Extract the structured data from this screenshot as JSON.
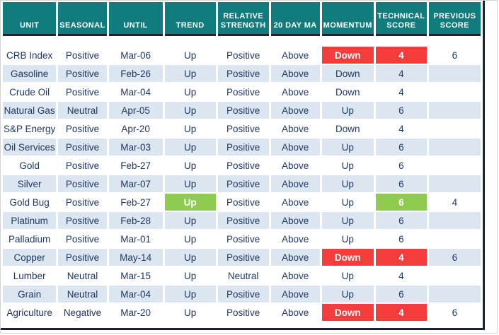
{
  "colors": {
    "header_bg": "#107c7d",
    "header_text": "#ffffff",
    "stripe_bg": "#dce6f1",
    "body_text": "#1f3864",
    "highlight_red": "#f53c3c",
    "highlight_green": "#8ecb4e",
    "heavy_border": "#1c2430"
  },
  "table": {
    "columns": [
      {
        "id": "unit",
        "label": "UNIT"
      },
      {
        "id": "seasonal",
        "label": "SEASONAL"
      },
      {
        "id": "until",
        "label": "UNTIL"
      },
      {
        "id": "trend",
        "label": "TREND"
      },
      {
        "id": "relative-strength",
        "label": "RELATIVE STRENGTH"
      },
      {
        "id": "20-day-ma",
        "label": "20 DAY MA"
      },
      {
        "id": "momentum",
        "label": "MOMENTUM"
      },
      {
        "id": "technical-score",
        "label": "TECHNICAL SCORE"
      },
      {
        "id": "previous-score",
        "label": "PREVIOUS SCORE"
      }
    ],
    "rows": [
      {
        "cells": [
          "CRB Index",
          "Positive",
          "Mar-06",
          "Up",
          "Positive",
          "Above",
          "Down",
          "4",
          "6"
        ],
        "highlights": {
          "6": "red",
          "7": "red"
        }
      },
      {
        "cells": [
          "Gasoline",
          "Positive",
          "Feb-26",
          "Up",
          "Positive",
          "Above",
          "Down",
          "4",
          ""
        ],
        "highlights": {}
      },
      {
        "cells": [
          "Crude Oil",
          "Positive",
          "Mar-04",
          "Up",
          "Positive",
          "Above",
          "Down",
          "4",
          ""
        ],
        "highlights": {}
      },
      {
        "cells": [
          "Natural Gas",
          "Neutral",
          "Apr-05",
          "Up",
          "Positive",
          "Above",
          "Up",
          "6",
          ""
        ],
        "highlights": {}
      },
      {
        "cells": [
          "S&P Energy",
          "Positive",
          "Apr-20",
          "Up",
          "Positive",
          "Above",
          "Down",
          "4",
          ""
        ],
        "highlights": {}
      },
      {
        "cells": [
          "Oil Services",
          "Positive",
          "Mar-03",
          "Up",
          "Positive",
          "Above",
          "Up",
          "6",
          ""
        ],
        "highlights": {}
      },
      {
        "cells": [
          "Gold",
          "Positive",
          "Feb-27",
          "Up",
          "Positive",
          "Above",
          "Up",
          "6",
          ""
        ],
        "highlights": {}
      },
      {
        "cells": [
          "Silver",
          "Positive",
          "Mar-07",
          "Up",
          "Positive",
          "Above",
          "Up",
          "6",
          ""
        ],
        "highlights": {}
      },
      {
        "cells": [
          "Gold Bug",
          "Positive",
          "Feb-27",
          "Up",
          "Positive",
          "Above",
          "Up",
          "6",
          "4"
        ],
        "highlights": {
          "3": "green",
          "7": "green"
        }
      },
      {
        "cells": [
          "Platinum",
          "Positive",
          "Feb-28",
          "Up",
          "Positive",
          "Above",
          "Up",
          "6",
          ""
        ],
        "highlights": {}
      },
      {
        "cells": [
          "Palladium",
          "Positive",
          "Mar-01",
          "Up",
          "Positive",
          "Above",
          "Up",
          "6",
          ""
        ],
        "highlights": {}
      },
      {
        "cells": [
          "Copper",
          "Positive",
          "May-14",
          "Up",
          "Positive",
          "Above",
          "Down",
          "4",
          "6"
        ],
        "highlights": {
          "6": "red",
          "7": "red"
        }
      },
      {
        "cells": [
          "Lumber",
          "Neutral",
          "Mar-15",
          "Up",
          "Neutral",
          "Above",
          "Up",
          "4",
          ""
        ],
        "highlights": {}
      },
      {
        "cells": [
          "Grain",
          "Neutral",
          "Mar-04",
          "Up",
          "Positive",
          "Above",
          "Up",
          "6",
          ""
        ],
        "highlights": {}
      },
      {
        "cells": [
          "Agriculture",
          "Negative",
          "Mar-20",
          "Up",
          "Positive",
          "Above",
          "Down",
          "4",
          "6"
        ],
        "highlights": {
          "6": "red",
          "7": "red"
        }
      }
    ]
  }
}
